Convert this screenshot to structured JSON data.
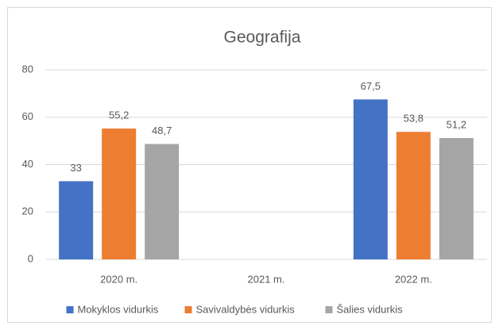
{
  "chart_data": {
    "type": "bar",
    "title": "Geografija",
    "categories": [
      "2020 m.",
      "2021 m.",
      "2022 m."
    ],
    "series": [
      {
        "name": "Mokyklos vidurkis",
        "color": "#4472c4",
        "values": [
          33,
          null,
          67.5
        ],
        "value_labels": [
          "33",
          null,
          "67,5"
        ]
      },
      {
        "name": "Savivaldybės vidurkis",
        "color": "#ed7d31",
        "values": [
          55.2,
          null,
          53.8
        ],
        "value_labels": [
          "55,2",
          null,
          "53,8"
        ]
      },
      {
        "name": "Šalies vidurkis",
        "color": "#a5a5a5",
        "values": [
          48.7,
          null,
          51.2
        ],
        "value_labels": [
          "48,7",
          null,
          "51,2"
        ]
      }
    ],
    "ylim": [
      0,
      80
    ],
    "yticks": [
      0,
      20,
      40,
      60,
      80
    ],
    "grid": true,
    "legend": "bottom"
  }
}
